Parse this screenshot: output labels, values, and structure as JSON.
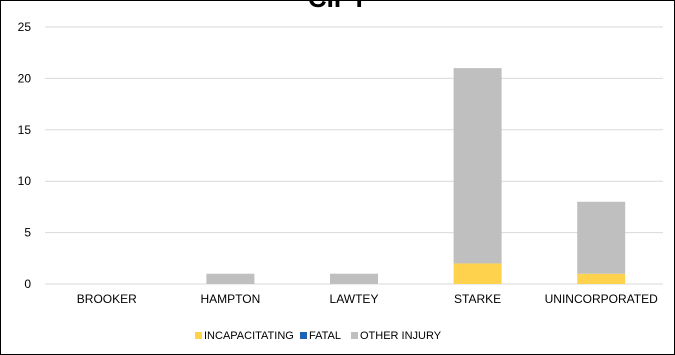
{
  "chart_data": {
    "type": "bar",
    "stacked": true,
    "title": "CIPT",
    "categories": [
      "BROOKER",
      "HAMPTON",
      "LAWTEY",
      "STARKE",
      "UNINCORPORATED"
    ],
    "series": [
      {
        "name": "INCAPACITATING",
        "color": "#FFD24D",
        "values": [
          0,
          0,
          0,
          2,
          1
        ]
      },
      {
        "name": "FATAL",
        "color": "#1F63B4",
        "values": [
          0,
          0,
          0,
          0,
          0
        ]
      },
      {
        "name": "OTHER INJURY",
        "color": "#BFBFBF",
        "values": [
          0,
          1,
          1,
          19,
          7
        ]
      }
    ],
    "ylim": [
      0,
      25
    ],
    "yticks": [
      "0",
      "5",
      "10",
      "15",
      "20",
      "25"
    ],
    "grid": true,
    "legend": "bottom"
  }
}
